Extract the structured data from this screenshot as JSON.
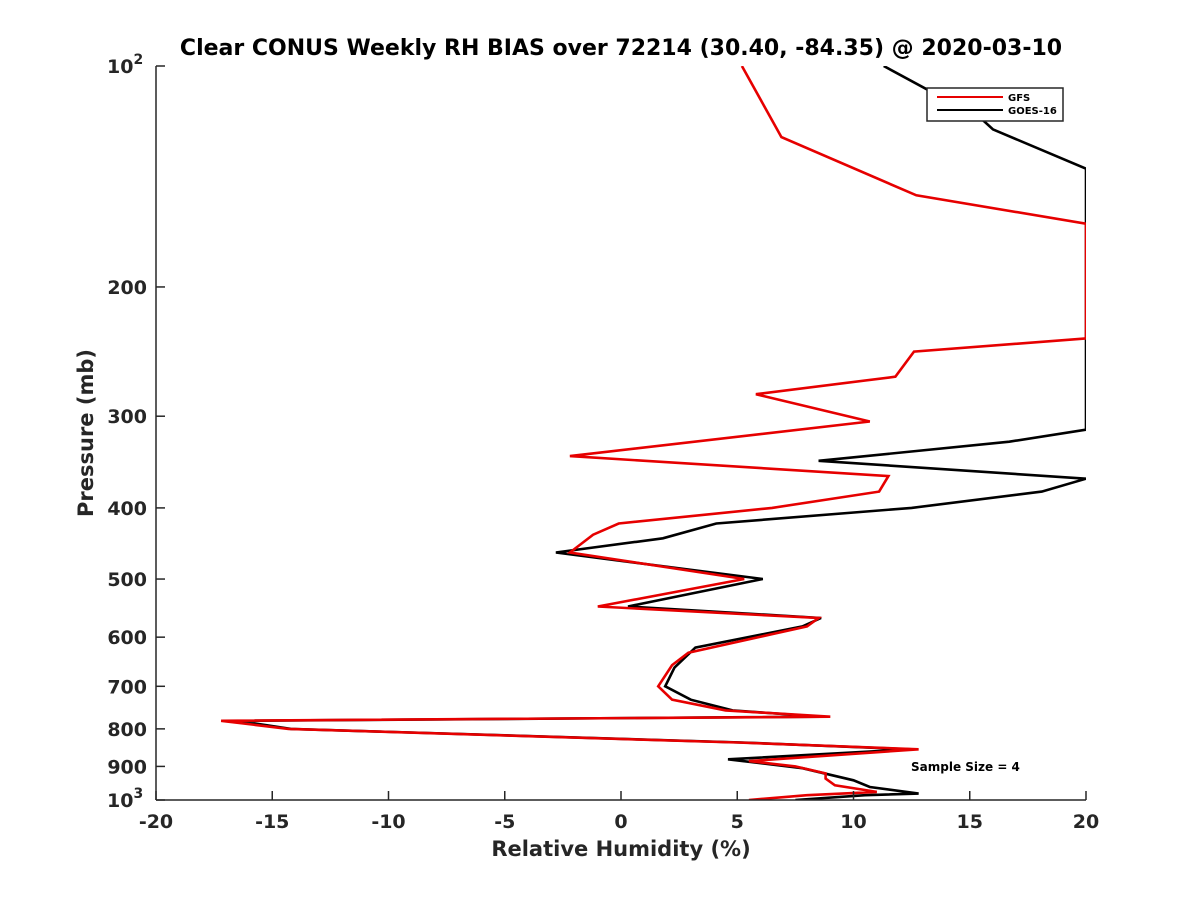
{
  "chart_data": {
    "type": "line",
    "title": "Clear CONUS Weekly RH BIAS over 72214 (30.40, -84.35) @ 2020-03-10",
    "xlabel": "Relative Humidity (%)",
    "ylabel": "Pressure (mb)",
    "xlim": [
      -20,
      20
    ],
    "ylim": [
      100,
      1000
    ],
    "y_scale": "log",
    "y_reversed": true,
    "x_ticks": [
      -20,
      -15,
      -10,
      -5,
      0,
      5,
      10,
      15,
      20
    ],
    "x_tick_labels": [
      "-20",
      "-15",
      "-10",
      "-5",
      "0",
      "5",
      "10",
      "15",
      "20"
    ],
    "y_ticks": [
      100,
      200,
      300,
      400,
      500,
      600,
      700,
      800,
      900,
      1000
    ],
    "y_tick_labels": [
      {
        "base": "10",
        "exp": "2"
      },
      {
        "base": "200",
        "exp": ""
      },
      {
        "base": "300",
        "exp": ""
      },
      {
        "base": "400",
        "exp": ""
      },
      {
        "base": "500",
        "exp": ""
      },
      {
        "base": "600",
        "exp": ""
      },
      {
        "base": "700",
        "exp": ""
      },
      {
        "base": "800",
        "exp": ""
      },
      {
        "base": "900",
        "exp": ""
      },
      {
        "base": "10",
        "exp": "3"
      }
    ],
    "legend_position": "top-right",
    "annotation": "Sample Size = 4",
    "series": [
      {
        "name": "GFS",
        "color": "#e60000",
        "points": [
          [
            5.2,
            100
          ],
          [
            6.9,
            125
          ],
          [
            12.7,
            150
          ],
          [
            20,
            164
          ],
          [
            20,
            235
          ],
          [
            12.6,
            245
          ],
          [
            11.8,
            265
          ],
          [
            5.8,
            280
          ],
          [
            10.7,
            305
          ],
          [
            -2.2,
            340
          ],
          [
            11.5,
            362
          ],
          [
            11.1,
            380
          ],
          [
            6.5,
            400
          ],
          [
            -0.1,
            420
          ],
          [
            -1.2,
            435
          ],
          [
            -2.2,
            460
          ],
          [
            5.3,
            500
          ],
          [
            -1.0,
            545
          ],
          [
            8.5,
            565
          ],
          [
            8.0,
            580
          ],
          [
            2.9,
            630
          ],
          [
            2.2,
            655
          ],
          [
            1.6,
            700
          ],
          [
            2.2,
            730
          ],
          [
            4.5,
            755
          ],
          [
            9.0,
            770
          ],
          [
            -17.2,
            780
          ],
          [
            -14.3,
            800
          ],
          [
            5.0,
            835
          ],
          [
            12.8,
            853
          ],
          [
            5.5,
            885
          ],
          [
            7.5,
            900
          ],
          [
            8.8,
            920
          ],
          [
            8.8,
            935
          ],
          [
            9.2,
            955
          ],
          [
            11.0,
            975
          ],
          [
            8.0,
            985
          ],
          [
            5.5,
            1000
          ]
        ]
      },
      {
        "name": "GOES-16",
        "color": "#000000",
        "points": [
          [
            11.3,
            100
          ],
          [
            15.5,
            118
          ],
          [
            16.0,
            122
          ],
          [
            20,
            138
          ],
          [
            20,
            313
          ],
          [
            16.7,
            325
          ],
          [
            8.5,
            345
          ],
          [
            20,
            365
          ],
          [
            18.1,
            380
          ],
          [
            12.5,
            400
          ],
          [
            4.1,
            420
          ],
          [
            1.8,
            440
          ],
          [
            -2.8,
            460
          ],
          [
            6.1,
            500
          ],
          [
            0.3,
            545
          ],
          [
            8.6,
            565
          ],
          [
            7.8,
            580
          ],
          [
            3.2,
            620
          ],
          [
            2.3,
            660
          ],
          [
            1.9,
            700
          ],
          [
            3.0,
            730
          ],
          [
            4.8,
            755
          ],
          [
            8.6,
            770
          ],
          [
            -16.5,
            780
          ],
          [
            -14.2,
            800
          ],
          [
            5.2,
            835
          ],
          [
            12.5,
            853
          ],
          [
            4.6,
            880
          ],
          [
            7.8,
            905
          ],
          [
            10.0,
            940
          ],
          [
            10.7,
            960
          ],
          [
            12.8,
            980
          ],
          [
            10.5,
            985
          ],
          [
            7.5,
            1000
          ]
        ]
      }
    ]
  }
}
